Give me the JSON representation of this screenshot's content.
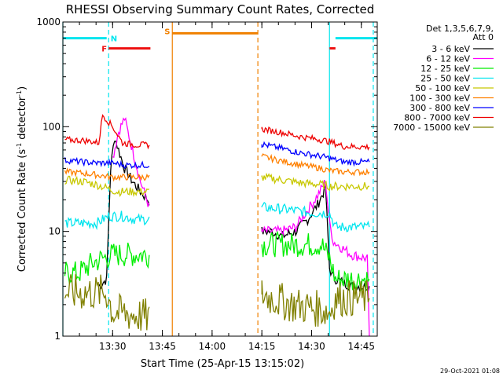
{
  "chart_data": {
    "type": "line",
    "title": "RHESSI Observing Summary Count Rates, Corrected",
    "xlabel": "Start Time (25-Apr-15 13:15:02)",
    "ylabel": "Corrected Count Rate (s⁻¹ detector⁻¹)",
    "ylabel_parts": [
      "Corrected Count Rate (s",
      "-1",
      " detector",
      "-1",
      ")"
    ],
    "yscale": "log",
    "ylim": [
      1,
      1000
    ],
    "xlim_minutes": [
      13.25,
      14.83
    ],
    "y_ticks": [
      {
        "v": 1,
        "label": "1"
      },
      {
        "v": 10,
        "label": "10"
      },
      {
        "v": 100,
        "label": "100"
      },
      {
        "v": 1000,
        "label": "1000"
      }
    ],
    "x_ticks": [
      {
        "v": 13.5,
        "label": "13:30"
      },
      {
        "v": 13.75,
        "label": "13:45"
      },
      {
        "v": 14.0,
        "label": "14:00"
      },
      {
        "v": 14.25,
        "label": "14:15"
      },
      {
        "v": 14.5,
        "label": "14:30"
      },
      {
        "v": 14.75,
        "label": "14:45"
      }
    ],
    "legend_header": [
      "Det 1,3,5,6,7,9,",
      "Att 0"
    ],
    "footer": "29-Oct-2021 01:08",
    "event_bars": [
      {
        "label": "N",
        "color": "#00e5ee",
        "segments": [
          [
            13.25,
            13.47
          ],
          [
            14.62,
            14.83
          ]
        ],
        "level": 700
      },
      {
        "label": "F",
        "color": "#ee1111",
        "segments": [
          [
            13.48,
            13.69
          ],
          [
            14.59,
            14.62
          ]
        ],
        "level": 560
      },
      {
        "label": "S",
        "color": "#f08000",
        "segments": [
          [
            13.8,
            14.23
          ]
        ],
        "level": 780
      }
    ],
    "vlines": [
      {
        "x": 13.25,
        "color": "#00e5ee",
        "style": "solid"
      },
      {
        "x": 13.48,
        "color": "#00e5ee",
        "style": "dashed"
      },
      {
        "x": 13.8,
        "color": "#f08000",
        "style": "solid"
      },
      {
        "x": 14.23,
        "color": "#f08000",
        "style": "dashed"
      },
      {
        "x": 14.59,
        "color": "#00e5ee",
        "style": "solid"
      },
      {
        "x": 14.81,
        "color": "#00e5ee",
        "style": "dashed"
      }
    ],
    "series": [
      {
        "name": "3 - 6 keV",
        "color": "#000000",
        "points": [
          [
            13.43,
            3.0
          ],
          [
            13.47,
            3.5
          ],
          [
            13.49,
            40
          ],
          [
            13.51,
            80
          ],
          [
            13.53,
            60
          ],
          [
            13.56,
            40
          ],
          [
            13.6,
            30
          ],
          [
            13.64,
            24
          ],
          [
            13.69,
            19
          ],
          [
            14.25,
            10
          ],
          [
            14.3,
            10
          ],
          [
            14.35,
            9
          ],
          [
            14.42,
            10
          ],
          [
            14.48,
            13
          ],
          [
            14.53,
            18
          ],
          [
            14.57,
            26
          ],
          [
            14.59,
            4.5
          ],
          [
            14.61,
            3.6
          ],
          [
            14.7,
            3.0
          ],
          [
            14.79,
            3.0
          ]
        ]
      },
      {
        "name": "6 - 12 keV",
        "color": "#ff00ff",
        "points": [
          [
            13.5,
            50
          ],
          [
            13.53,
            90
          ],
          [
            13.56,
            120
          ],
          [
            13.6,
            60
          ],
          [
            13.64,
            30
          ],
          [
            13.69,
            16
          ],
          [
            14.25,
            10
          ],
          [
            14.3,
            10
          ],
          [
            14.35,
            10
          ],
          [
            14.42,
            11
          ],
          [
            14.48,
            16
          ],
          [
            14.53,
            22
          ],
          [
            14.57,
            30
          ],
          [
            14.59,
            12
          ],
          [
            14.61,
            8
          ],
          [
            14.7,
            6
          ],
          [
            14.78,
            5.5
          ],
          [
            14.79,
            1.0
          ]
        ]
      },
      {
        "name": "12 - 25 keV",
        "color": "#00ee00",
        "points": [
          [
            13.26,
            4
          ],
          [
            13.33,
            4
          ],
          [
            13.4,
            5
          ],
          [
            13.45,
            5.5
          ],
          [
            13.5,
            6
          ],
          [
            13.6,
            6
          ],
          [
            13.69,
            6
          ],
          [
            14.25,
            7.5
          ],
          [
            14.4,
            7.5
          ],
          [
            14.55,
            7.5
          ],
          [
            14.59,
            5.5
          ],
          [
            14.62,
            3.5
          ],
          [
            14.7,
            3.5
          ],
          [
            14.79,
            3.5
          ]
        ]
      },
      {
        "name": "25 - 50 keV",
        "color": "#00e5ee",
        "points": [
          [
            13.26,
            12
          ],
          [
            13.35,
            12
          ],
          [
            13.42,
            12
          ],
          [
            13.48,
            14
          ],
          [
            13.55,
            14
          ],
          [
            13.62,
            13
          ],
          [
            13.69,
            13
          ],
          [
            14.25,
            17
          ],
          [
            14.4,
            16
          ],
          [
            14.5,
            15
          ],
          [
            14.59,
            15
          ],
          [
            14.62,
            11
          ],
          [
            14.7,
            11
          ],
          [
            14.79,
            11
          ]
        ]
      },
      {
        "name": "50 - 100 keV",
        "color": "#c8c800",
        "points": [
          [
            13.26,
            31
          ],
          [
            13.35,
            30
          ],
          [
            13.42,
            28
          ],
          [
            13.47,
            26
          ],
          [
            13.52,
            24
          ],
          [
            13.6,
            24
          ],
          [
            13.69,
            24
          ],
          [
            14.25,
            33
          ],
          [
            14.35,
            31
          ],
          [
            14.45,
            29
          ],
          [
            14.55,
            28
          ],
          [
            14.59,
            27
          ],
          [
            14.66,
            27
          ],
          [
            14.79,
            27
          ]
        ]
      },
      {
        "name": "100 - 300 keV",
        "color": "#ff8000",
        "points": [
          [
            13.26,
            37
          ],
          [
            13.35,
            36
          ],
          [
            13.45,
            34
          ],
          [
            13.5,
            33
          ],
          [
            13.58,
            33
          ],
          [
            13.69,
            33
          ],
          [
            14.25,
            52
          ],
          [
            14.35,
            47
          ],
          [
            14.45,
            43
          ],
          [
            14.55,
            40
          ],
          [
            14.59,
            38
          ],
          [
            14.66,
            37
          ],
          [
            14.79,
            37
          ]
        ]
      },
      {
        "name": "300 - 800 keV",
        "color": "#0000ff",
        "points": [
          [
            13.26,
            48
          ],
          [
            13.35,
            46
          ],
          [
            13.42,
            45
          ],
          [
            13.5,
            45
          ],
          [
            13.56,
            43
          ],
          [
            13.62,
            43
          ],
          [
            13.69,
            43
          ],
          [
            14.25,
            68
          ],
          [
            14.35,
            62
          ],
          [
            14.45,
            56
          ],
          [
            14.55,
            52
          ],
          [
            14.59,
            50
          ],
          [
            14.66,
            46
          ],
          [
            14.79,
            46
          ]
        ]
      },
      {
        "name": "800 - 7000 keV",
        "color": "#ee0000",
        "points": [
          [
            13.26,
            75
          ],
          [
            13.35,
            74
          ],
          [
            13.4,
            72
          ],
          [
            13.43,
            70
          ],
          [
            13.45,
            130
          ],
          [
            13.5,
            100
          ],
          [
            13.55,
            70
          ],
          [
            13.62,
            67
          ],
          [
            13.69,
            67
          ],
          [
            14.25,
            95
          ],
          [
            14.35,
            88
          ],
          [
            14.45,
            80
          ],
          [
            14.55,
            75
          ],
          [
            14.59,
            72
          ],
          [
            14.66,
            65
          ],
          [
            14.79,
            64
          ]
        ]
      },
      {
        "name": "7000 - 15000 keV",
        "color": "#808000",
        "points": [
          [
            13.26,
            2.6
          ],
          [
            13.35,
            2.6
          ],
          [
            13.47,
            2.6
          ],
          [
            13.5,
            1.7
          ],
          [
            13.6,
            1.6
          ],
          [
            13.69,
            1.5
          ],
          [
            14.25,
            2.5
          ],
          [
            14.4,
            2.0
          ],
          [
            14.55,
            1.8
          ],
          [
            14.59,
            1.7
          ],
          [
            14.62,
            2.3
          ],
          [
            14.7,
            2.3
          ],
          [
            14.79,
            2.3
          ]
        ]
      }
    ]
  }
}
